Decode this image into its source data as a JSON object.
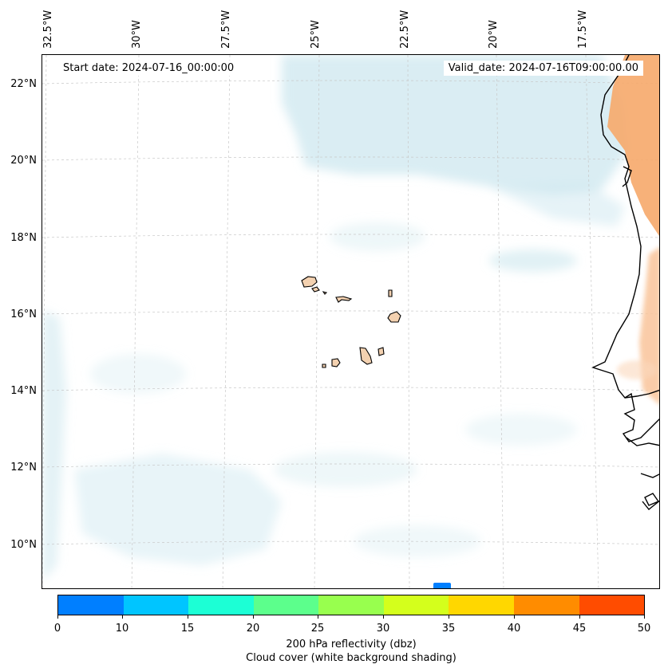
{
  "map": {
    "start_date": "Start date: 2024-07-16_00:00:00",
    "valid_date": "Valid_date: 2024-07-16T09:00:00.00",
    "lon_labels": [
      "32.5°W",
      "30°W",
      "27.5°W",
      "25°W",
      "22.5°W",
      "20°W",
      "17.5°W"
    ],
    "lat_labels": [
      "22°N",
      "20°N",
      "18°N",
      "16°N",
      "14°N",
      "12°N",
      "10°N"
    ],
    "land_fill_color": "#f3d1b0",
    "coastline_color": "#000000",
    "cloud_color": "#cde7ef",
    "gridline_color": "#c8c8c8"
  },
  "colorbar": {
    "ticks": [
      "0",
      "10",
      "15",
      "20",
      "25",
      "30",
      "35",
      "40",
      "45",
      "50"
    ],
    "colors": [
      "#007fff",
      "#00c5ff",
      "#1cffd5",
      "#5cff8c",
      "#98ff4e",
      "#d4ff1c",
      "#ffd700",
      "#ff8c00",
      "#ff4c00"
    ],
    "label_line1": "200 hPa reflectivity (dbz)",
    "label_line2": "Cloud cover (white background shading)"
  }
}
